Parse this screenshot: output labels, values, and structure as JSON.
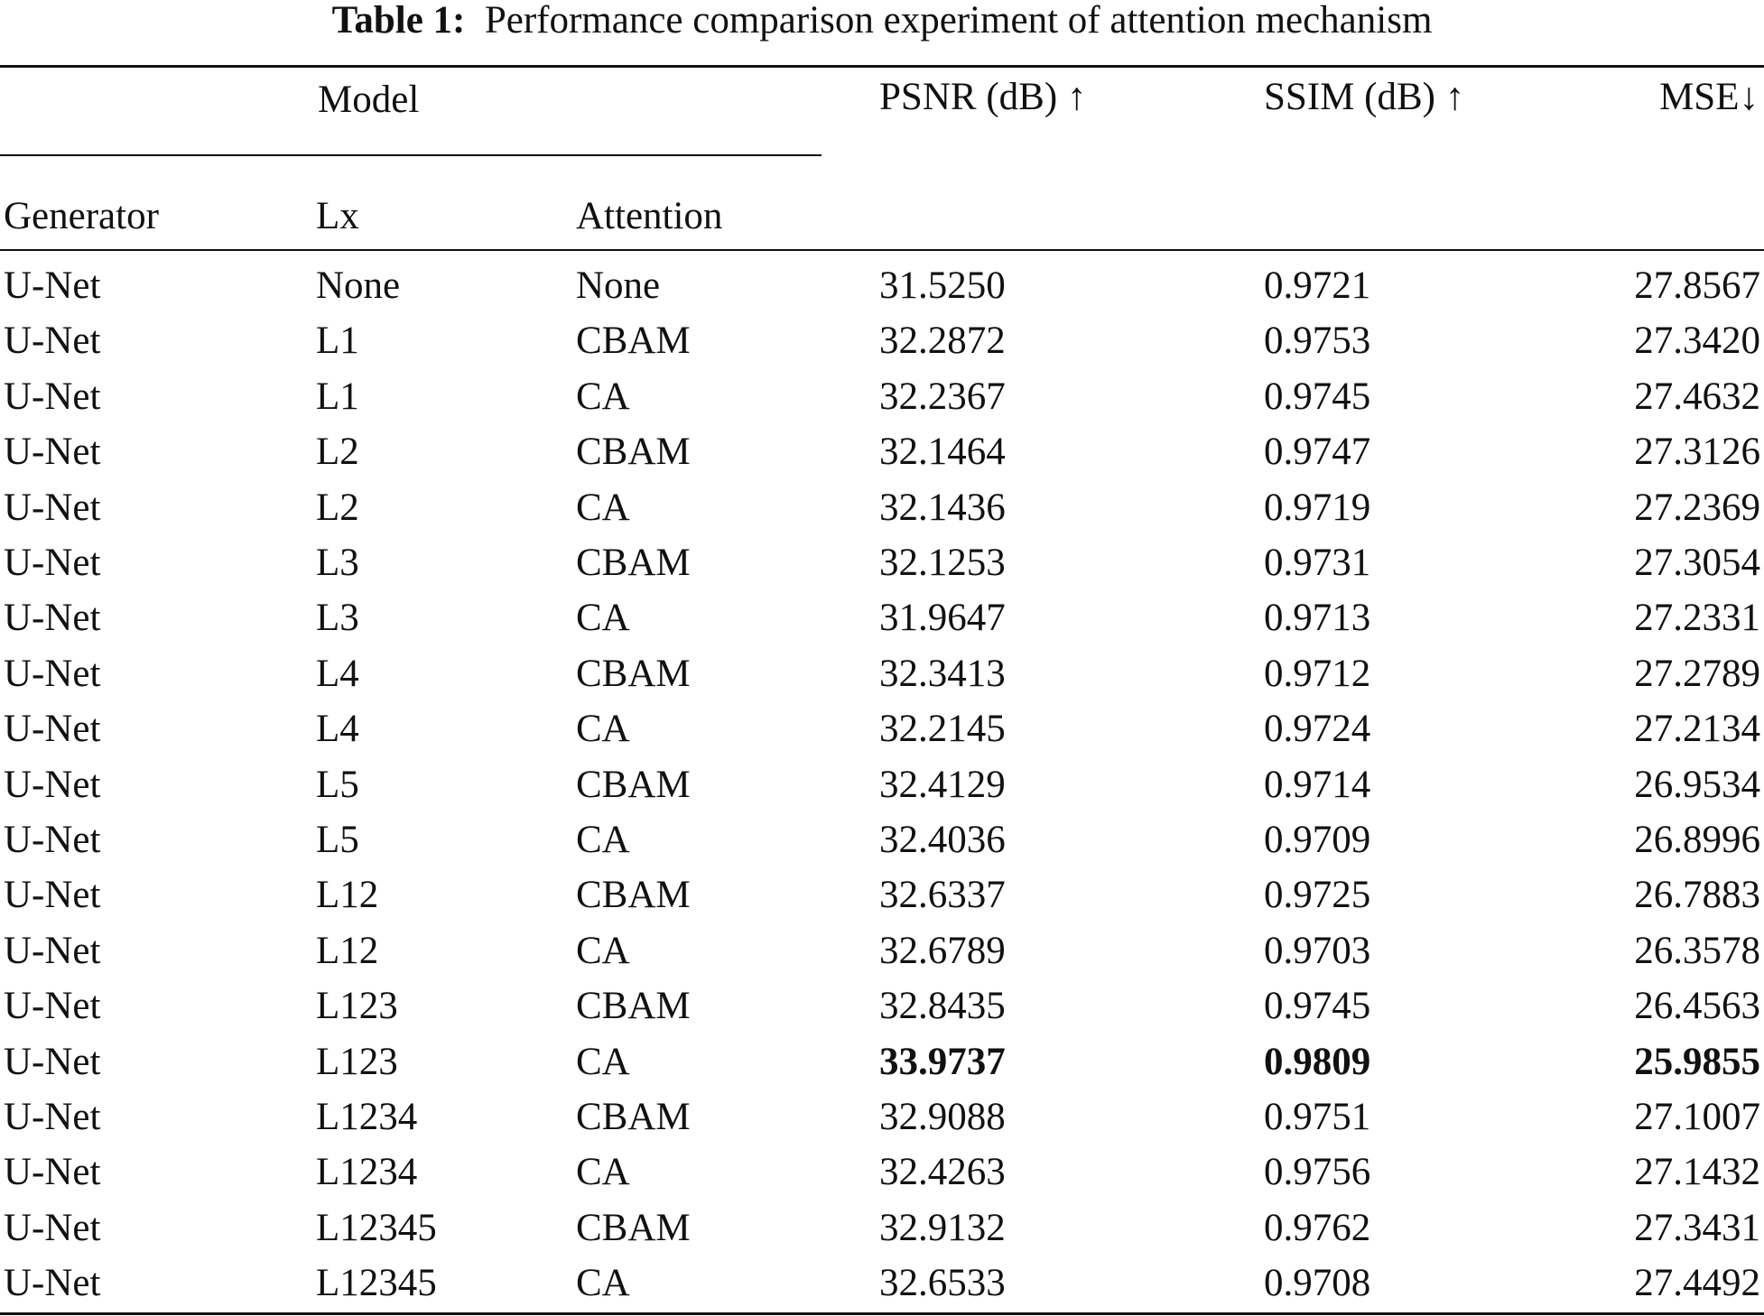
{
  "caption": {
    "label": "Table 1:",
    "text": "Performance comparison experiment of attention mechanism"
  },
  "header": {
    "group_label": "Model",
    "generator": "Generator",
    "lx": "Lx",
    "attention": "Attention",
    "psnr": "PSNR (dB) ↑",
    "ssim": "SSIM (dB) ↑",
    "mse": "MSE↓"
  },
  "rows": [
    {
      "generator": "U-Net",
      "lx": "None",
      "attention": "None",
      "psnr": "31.5250",
      "ssim": "0.9721",
      "mse": "27.8567"
    },
    {
      "generator": "U-Net",
      "lx": "L1",
      "attention": "CBAM",
      "psnr": "32.2872",
      "ssim": "0.9753",
      "mse": "27.3420"
    },
    {
      "generator": "U-Net",
      "lx": "L1",
      "attention": "CA",
      "psnr": "32.2367",
      "ssim": "0.9745",
      "mse": "27.4632"
    },
    {
      "generator": "U-Net",
      "lx": "L2",
      "attention": "CBAM",
      "psnr": "32.1464",
      "ssim": "0.9747",
      "mse": "27.3126"
    },
    {
      "generator": "U-Net",
      "lx": "L2",
      "attention": "CA",
      "psnr": "32.1436",
      "ssim": "0.9719",
      "mse": "27.2369"
    },
    {
      "generator": "U-Net",
      "lx": "L3",
      "attention": "CBAM",
      "psnr": "32.1253",
      "ssim": "0.9731",
      "mse": "27.3054"
    },
    {
      "generator": "U-Net",
      "lx": "L3",
      "attention": "CA",
      "psnr": "31.9647",
      "ssim": "0.9713",
      "mse": "27.2331"
    },
    {
      "generator": "U-Net",
      "lx": "L4",
      "attention": "CBAM",
      "psnr": "32.3413",
      "ssim": "0.9712",
      "mse": "27.2789"
    },
    {
      "generator": "U-Net",
      "lx": "L4",
      "attention": "CA",
      "psnr": "32.2145",
      "ssim": "0.9724",
      "mse": "27.2134"
    },
    {
      "generator": "U-Net",
      "lx": "L5",
      "attention": "CBAM",
      "psnr": "32.4129",
      "ssim": "0.9714",
      "mse": "26.9534"
    },
    {
      "generator": "U-Net",
      "lx": "L5",
      "attention": "CA",
      "psnr": "32.4036",
      "ssim": "0.9709",
      "mse": "26.8996"
    },
    {
      "generator": "U-Net",
      "lx": "L12",
      "attention": "CBAM",
      "psnr": "32.6337",
      "ssim": "0.9725",
      "mse": "26.7883"
    },
    {
      "generator": "U-Net",
      "lx": "L12",
      "attention": "CA",
      "psnr": "32.6789",
      "ssim": "0.9703",
      "mse": "26.3578"
    },
    {
      "generator": "U-Net",
      "lx": "L123",
      "attention": "CBAM",
      "psnr": "32.8435",
      "ssim": "0.9745",
      "mse": "26.4563"
    },
    {
      "generator": "U-Net",
      "lx": "L123",
      "attention": "CA",
      "psnr": "33.9737",
      "ssim": "0.9809",
      "mse": "25.9855",
      "best": true
    },
    {
      "generator": "U-Net",
      "lx": "L1234",
      "attention": "CBAM",
      "psnr": "32.9088",
      "ssim": "0.9751",
      "mse": "27.1007"
    },
    {
      "generator": "U-Net",
      "lx": "L1234",
      "attention": "CA",
      "psnr": "32.4263",
      "ssim": "0.9756",
      "mse": "27.1432"
    },
    {
      "generator": "U-Net",
      "lx": "L12345",
      "attention": "CBAM",
      "psnr": "32.9132",
      "ssim": "0.9762",
      "mse": "27.3431"
    },
    {
      "generator": "U-Net",
      "lx": "L12345",
      "attention": "CA",
      "psnr": "32.6533",
      "ssim": "0.9708",
      "mse": "27.4492"
    }
  ]
}
